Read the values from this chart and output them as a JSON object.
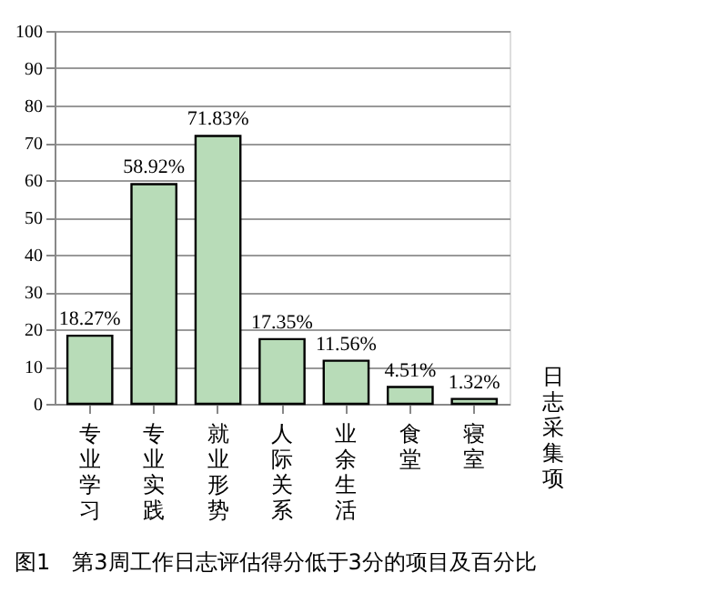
{
  "chart_data": {
    "type": "bar",
    "title": "图1　第3周工作日志评估得分低于3分的项目及百分比",
    "xlabel": "日志采集项",
    "categories": [
      "专业学习",
      "专业实践",
      "就业形势",
      "人际关系",
      "业余生活",
      "食堂",
      "寝室"
    ],
    "values": [
      18.27,
      58.92,
      71.83,
      17.35,
      11.56,
      4.51,
      1.32
    ],
    "value_labels": [
      "18.27%",
      "58.92%",
      "71.83%",
      "17.35%",
      "11.56%",
      "4.51%",
      "1.32%"
    ],
    "color": "#b8dcb8",
    "ylim": [
      0,
      100
    ],
    "yticks": [
      0,
      10,
      20,
      30,
      40,
      50,
      60,
      70,
      80,
      90,
      100
    ],
    "grid": "y"
  }
}
